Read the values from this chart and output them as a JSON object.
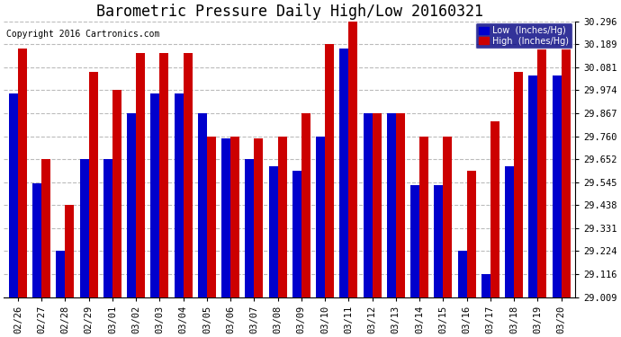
{
  "title": "Barometric Pressure Daily High/Low 20160321",
  "copyright": "Copyright 2016 Cartronics.com",
  "dates": [
    "02/26",
    "02/27",
    "02/28",
    "02/29",
    "03/01",
    "03/02",
    "03/03",
    "03/04",
    "03/05",
    "03/06",
    "03/07",
    "03/08",
    "03/09",
    "03/10",
    "03/11",
    "03/12",
    "03/13",
    "03/14",
    "03/15",
    "03/16",
    "03/17",
    "03/18",
    "03/19",
    "03/20"
  ],
  "low_values": [
    29.96,
    29.54,
    29.224,
    29.652,
    29.652,
    29.867,
    29.96,
    29.96,
    29.867,
    29.75,
    29.652,
    29.62,
    29.6,
    29.76,
    30.17,
    29.867,
    29.867,
    29.53,
    29.53,
    29.224,
    29.116,
    29.62,
    30.045,
    30.045
  ],
  "high_values": [
    30.17,
    29.652,
    29.438,
    30.06,
    29.974,
    30.15,
    30.15,
    30.15,
    29.76,
    29.76,
    29.75,
    29.76,
    29.867,
    30.189,
    30.296,
    29.867,
    29.867,
    29.76,
    29.76,
    29.6,
    29.83,
    30.06,
    30.17,
    30.17
  ],
  "ylim_min": 29.009,
  "ylim_max": 30.296,
  "yticks": [
    29.009,
    29.116,
    29.224,
    29.331,
    29.438,
    29.545,
    29.652,
    29.76,
    29.867,
    29.974,
    30.081,
    30.189,
    30.296
  ],
  "bar_width": 0.38,
  "low_color": "#0000cc",
  "high_color": "#cc0000",
  "bg_color": "#ffffff",
  "grid_color": "#bbbbbb",
  "legend_low_label": "Low  (Inches/Hg)",
  "legend_high_label": "High  (Inches/Hg)",
  "title_fontsize": 12,
  "tick_fontsize": 7.5,
  "copyright_fontsize": 7
}
